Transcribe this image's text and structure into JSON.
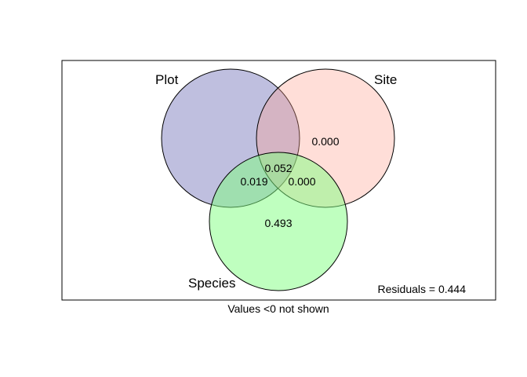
{
  "sets": [
    {
      "name": "Plot",
      "color": "#8080C0"
    },
    {
      "name": "Site",
      "color": "#FFA090"
    },
    {
      "name": "Species",
      "color": "#80FF80"
    }
  ],
  "values": {
    "site_only": "0.000",
    "all_three": "0.052",
    "plot_species": "0.019",
    "site_species": "0.000",
    "species_only": "0.493"
  },
  "residuals_text": "Residuals = 0.444",
  "footnote": "Values <0 not shown"
}
